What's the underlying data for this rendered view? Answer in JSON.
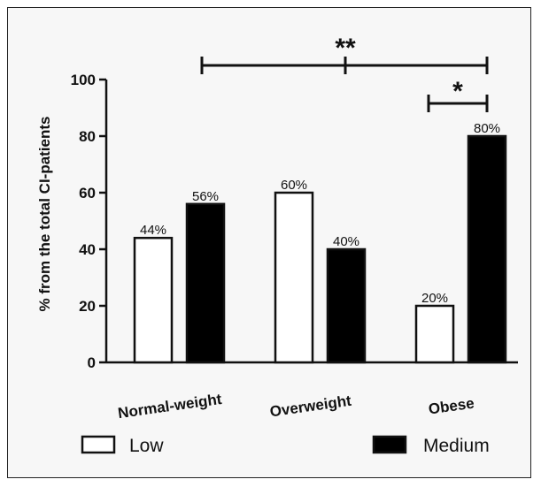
{
  "chart_data": {
    "type": "bar",
    "title": "",
    "xlabel": "",
    "ylabel": "% from the total CI-patients",
    "ylim": [
      0,
      100
    ],
    "yticks": [
      0,
      20,
      40,
      60,
      80,
      100
    ],
    "categories": [
      "Normal-weight",
      "Overweight",
      "Obese"
    ],
    "series": [
      {
        "name": "Low",
        "values": [
          44,
          60,
          20
        ],
        "labels": [
          "44%",
          "60%",
          "20%"
        ],
        "color": "#ffffff"
      },
      {
        "name": "Medium",
        "values": [
          56,
          40,
          80
        ],
        "labels": [
          "56%",
          "40%",
          "80%"
        ],
        "color": "#000000"
      }
    ],
    "significance": [
      {
        "label": "**",
        "from": "Normal-weight Medium",
        "to": "Obese Medium"
      },
      {
        "label": "*",
        "from": "Obese Low",
        "to": "Obese Medium"
      }
    ],
    "grid": false,
    "legend_position": "bottom"
  }
}
